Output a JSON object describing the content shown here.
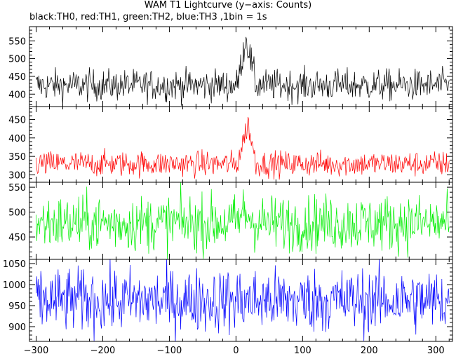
{
  "chart_data": {
    "type": "line",
    "title": "WAM T1 Lightcurve (y−axis: Counts)",
    "subtitle": "black:TH0, red:TH1, green:TH2, blue:TH3 ,1bin = 1s",
    "xlim": [
      -310,
      325
    ],
    "x_ticks": [
      -300,
      -200,
      -100,
      0,
      100,
      200,
      300
    ],
    "x_tick_labels": [
      "−300",
      "−200",
      "−100",
      "0",
      "100",
      "200",
      "300"
    ],
    "bin_seconds": 1,
    "x_start": -300,
    "x_end": 320,
    "panels": [
      {
        "name": "TH0",
        "color": "#000000",
        "ylim": [
          365,
          590
        ],
        "yticks": [
          400,
          450,
          500,
          550
        ],
        "baseline": 425,
        "noise": 22,
        "flare": {
          "start": 2,
          "peak": 15,
          "end": 30,
          "peak_level": 560
        },
        "x": [
          -300,
          -250,
          -200,
          -150,
          -100,
          -50,
          0,
          10,
          15,
          20,
          30,
          50,
          100,
          150,
          200,
          250,
          300,
          320
        ],
        "values": [
          427,
          430,
          425,
          428,
          425,
          426,
          470,
          545,
          565,
          545,
          450,
          432,
          424,
          428,
          426,
          435,
          428,
          430
        ]
      },
      {
        "name": "TH1",
        "color": "#ff0000",
        "ylim": [
          280,
          485
        ],
        "yticks": [
          300,
          350,
          400,
          450
        ],
        "baseline": 330,
        "noise": 17,
        "flare": {
          "start": 2,
          "peak": 18,
          "end": 30,
          "peak_level": 440
        },
        "x": [
          -300,
          -250,
          -200,
          -150,
          -100,
          -50,
          0,
          10,
          18,
          25,
          30,
          50,
          100,
          150,
          200,
          250,
          300,
          320
        ],
        "values": [
          332,
          330,
          333,
          331,
          330,
          329,
          350,
          405,
          445,
          430,
          340,
          333,
          330,
          331,
          330,
          334,
          331,
          330
        ]
      },
      {
        "name": "TH2",
        "color": "#00ee00",
        "ylim": [
          405,
          560
        ],
        "yticks": [
          450,
          500,
          550
        ],
        "baseline": 478,
        "noise": 28,
        "flare": {
          "start": 0,
          "peak": 12,
          "end": 30,
          "peak_level": 500
        },
        "x": [
          -300,
          -250,
          -200,
          -150,
          -100,
          -50,
          0,
          12,
          30,
          50,
          100,
          150,
          200,
          250,
          300,
          320
        ],
        "values": [
          478,
          480,
          476,
          479,
          477,
          478,
          490,
          500,
          480,
          477,
          478,
          479,
          477,
          481,
          478,
          479
        ]
      },
      {
        "name": "TH3",
        "color": "#0000ff",
        "ylim": [
          865,
          1060
        ],
        "yticks": [
          900,
          950,
          1000,
          1050
        ],
        "baseline": 962,
        "noise": 38,
        "flare": null,
        "x": [
          -300,
          -200,
          -100,
          0,
          100,
          200,
          300,
          320
        ],
        "values": [
          960,
          962,
          958,
          963,
          961,
          960,
          962,
          965
        ]
      }
    ],
    "series": [
      {
        "name": "TH0",
        "color": "#000000"
      },
      {
        "name": "TH1",
        "color": "#ff0000"
      },
      {
        "name": "TH2",
        "color": "#00ee00"
      },
      {
        "name": "TH3",
        "color": "#0000ff"
      }
    ],
    "grid": false
  }
}
